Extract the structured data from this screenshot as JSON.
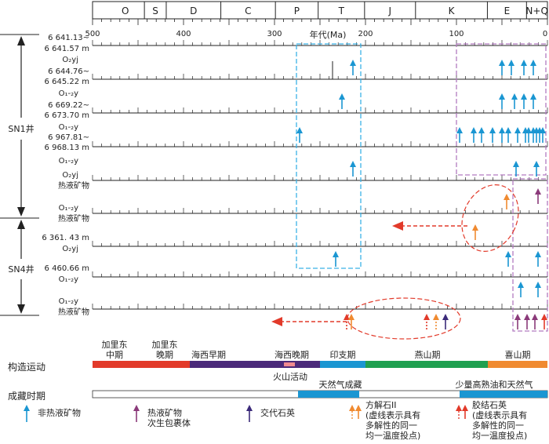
{
  "axis": {
    "title": "年代(Ma)",
    "ticks": [
      "500",
      "400",
      "300",
      "200",
      "100",
      "0"
    ]
  },
  "periods": [
    "O",
    "S",
    "D",
    "C",
    "P",
    "T",
    "J",
    "K",
    "E",
    "N+Q"
  ],
  "wells": [
    {
      "name": "SN1井",
      "rows": [
        {
          "top": "6 641.13~",
          "bottom": "6 641.57 m",
          "formation": "O₂yj"
        },
        {
          "top": "6 644.76~",
          "bottom": "6 645.22 m",
          "formation": "O₁-₂y"
        },
        {
          "top": "6 669.22~",
          "bottom": "6 673.70 m",
          "formation": "O₁-₂y"
        },
        {
          "top": "6 967.81~",
          "bottom": "6 968.13 m",
          "formation": "O₁-₂y"
        },
        {
          "top": "",
          "bottom": "",
          "formation": "O₂yj",
          "extra": "热液矿物"
        },
        {
          "top": "",
          "bottom": "",
          "formation": "O₁-₂y",
          "extra": "热液矿物"
        }
      ]
    },
    {
      "name": "SN4井",
      "rows": [
        {
          "top": "6 361. 43 m",
          "bottom": "",
          "formation": "O₂yj"
        },
        {
          "top": "6 460.66 m",
          "bottom": "",
          "formation": "O₁-₂y"
        },
        {
          "top": "",
          "bottom": "",
          "formation": "O₁-₂y",
          "extra": "热液矿物"
        }
      ]
    }
  ],
  "tectonics": {
    "label": "构造运动",
    "phases": [
      "加里东\n中期",
      "加里东\n晚期",
      "海西早期",
      "海西晚期",
      "印支期",
      "燕山期",
      "喜山期"
    ],
    "event": "火山活动"
  },
  "accumulation": {
    "label": "成藏时期",
    "event1": "天然气成藏",
    "event2": "少量高熟油和天然气"
  },
  "legend": [
    {
      "label": "非热液矿物",
      "color": "#1a96d2"
    },
    {
      "label": "热液矿物\n次生包裹体",
      "color": "#8b3a7a"
    },
    {
      "label": "交代石英",
      "color": "#3b2a7a"
    },
    {
      "label": "方解石II\n(虚线表示具有\n多解性的同一\n均一温度投点)",
      "color": "#f08a30"
    },
    {
      "label": "胶结石英\n(虚线表示具有\n多解性的同一\n均一温度投点)",
      "color": "#e23a2a"
    }
  ],
  "colors": {
    "cyan_box": "#3bb2e6",
    "purple_box": "#b27bc0",
    "red_ellipse": "#e23a2a",
    "caledonian": "#e23a2a",
    "hercynian": "#4b2a7a",
    "indosinian": "#1a96d2",
    "yanshan": "#20a050",
    "himalaya": "#f08a30"
  }
}
